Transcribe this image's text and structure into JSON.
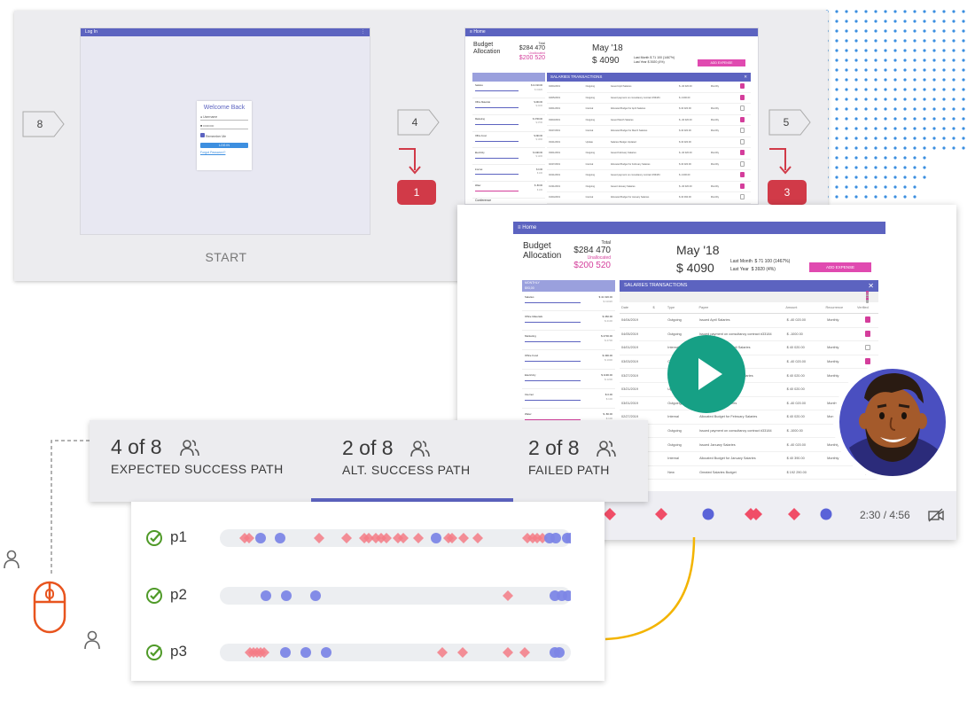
{
  "flow": {
    "login": {
      "title": "Log In",
      "welcome": "Welcome Back",
      "username_placeholder": "Username",
      "password_placeholder": "••••••••••",
      "remember": "Remember Me",
      "login_button": "LOG IN",
      "forgot": "Forgot Password?",
      "start_label": "START"
    },
    "steps": {
      "left": "8",
      "middle": "4",
      "right": "5"
    },
    "badges": {
      "first": "1",
      "second": "3"
    }
  },
  "dashboard": {
    "nav_title": "Home",
    "budget_title_line1": "Budget",
    "budget_title_line2": "Allocation",
    "total_label": "Total",
    "total_value": "$284 470",
    "unallocated_label": "Unallocated",
    "unallocated_value": "$200 520",
    "month": "May '18",
    "month_amount": "$ 4090",
    "last_month_label": "Last Month",
    "last_month_value": "$ 71 100 (1467%)",
    "last_year_label": "Last Year",
    "last_year_value": "$ 3920 (4%)",
    "add_expense": "ADD EXPENSE",
    "monthly_header": "MONTHLY",
    "monthly_sub": "$93,00",
    "categories": [
      {
        "name": "Salaries",
        "amount": "$ 41 020.00",
        "sub": "$ 41020"
      },
      {
        "name": "Office Materials",
        "amount": "$ 460.00",
        "sub": "$ 4100"
      },
      {
        "name": "Marketing",
        "amount": "$ 4700.00",
        "sub": "$ 4700"
      },
      {
        "name": "Office Food",
        "amount": "$ 490.00",
        "sub": "$ 1000"
      },
      {
        "name": "Electricity",
        "amount": "$ 1190.00",
        "sub": "$ 1200"
      },
      {
        "name": "Internet",
        "amount": "$ 0.00",
        "sub": "$ 100"
      },
      {
        "name": "Water",
        "amount": "$ -80.00",
        "sub": "$ 100"
      }
    ],
    "extra_category": "Conference",
    "transactions_title": "SALARIES TRANSACTIONS",
    "columns": [
      "Date",
      "$",
      "Type",
      "Payee",
      "Amount",
      "Recurrence",
      "Verified"
    ],
    "transactions": [
      {
        "date": "04/04/2019",
        "type": "Outgoing",
        "payee": "Issued April Salaries",
        "amount": "$ -40 020.00",
        "rec": "Monthly",
        "ver": true
      },
      {
        "date": "04/05/2019",
        "type": "Outgoing",
        "payee": "Issued payment on consultancy contract #33184",
        "amount": "$ -1000.00",
        "rec": "",
        "ver": true
      },
      {
        "date": "04/01/2019",
        "type": "Internal",
        "payee": "Allocated Budget for April Salaries",
        "amount": "$ 40 020.00",
        "rec": "Monthly",
        "ver": false
      },
      {
        "date": "03/03/2019",
        "type": "Outgoing",
        "payee": "Issued March Salaries",
        "amount": "$ -40 020.00",
        "rec": "Monthly",
        "ver": true
      },
      {
        "date": "03/27/2019",
        "type": "Internal",
        "payee": "Allocated Budget for March Salaries",
        "amount": "$ 40 020.00",
        "rec": "Monthly",
        "ver": false
      },
      {
        "date": "03/21/2019",
        "type": "Update",
        "payee": "Salaries Budget Updated",
        "amount": "$ 40 020.00",
        "rec": "",
        "ver": false
      },
      {
        "date": "03/01/2019",
        "type": "Outgoing",
        "payee": "Issued February Salaries",
        "amount": "$ -40 020.00",
        "rec": "Monthly",
        "ver": true
      },
      {
        "date": "02/27/2019",
        "type": "Internal",
        "payee": "Allocated Budget for February Salaries",
        "amount": "$ 40 020.00",
        "rec": "Monthly",
        "ver": false
      },
      {
        "date": "02/21/2019",
        "type": "Outgoing",
        "payee": "Issued payment on consultancy contract #33184",
        "amount": "$ -1000.00",
        "rec": "",
        "ver": true
      },
      {
        "date": "01/31/2019",
        "type": "Outgoing",
        "payee": "Issued January Salaries",
        "amount": "$ -40 020.00",
        "rec": "Monthly",
        "ver": true
      },
      {
        "date": "01/04/2019",
        "type": "Internal",
        "payee": "Allocated Budget for January Salaries",
        "amount": "$ 40 390.00",
        "rec": "Monthly",
        "ver": false
      },
      {
        "date": "01/01/2019",
        "type": "New",
        "payee": "Greated Salaries Budget",
        "amount": "$ 192 290.00",
        "rec": "",
        "ver": false
      }
    ]
  },
  "video": {
    "time": "2:30 / 4:56"
  },
  "tabs": [
    {
      "count": "4 of 8",
      "label": "EXPECTED SUCCESS PATH"
    },
    {
      "count": "2 of 8",
      "label": "ALT. SUCCESS PATH"
    },
    {
      "count": "2 of 8",
      "label": "FAILED PATH"
    }
  ],
  "participants": [
    {
      "label": "p1"
    },
    {
      "label": "p2"
    },
    {
      "label": "p3"
    }
  ],
  "colors": {
    "accent": "#5c63c0",
    "event_circle": "#7d86e6",
    "event_diamond": "#f47b86",
    "success": "#4f9a28",
    "badge": "#d13a48",
    "play": "#16a085",
    "mouse": "#e8541e",
    "connector": "#f3b400"
  },
  "icons": {
    "users": "users-icon",
    "check": "check-circle-icon",
    "play": "play-icon",
    "mouse": "mouse-icon",
    "person": "person-icon",
    "close": "close-icon",
    "menu": "menu-icon",
    "camera_off": "camera-off-icon"
  }
}
